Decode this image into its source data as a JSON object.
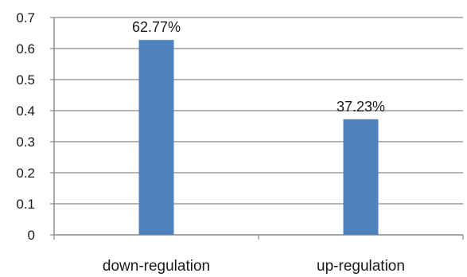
{
  "chart_data": {
    "type": "bar",
    "categories": [
      "down-regulation",
      "up-regulation"
    ],
    "values": [
      0.6277,
      0.3723
    ],
    "data_labels": [
      "62.77%",
      "37.23%"
    ],
    "title": "",
    "xlabel": "",
    "ylabel": "",
    "ylim": [
      0,
      0.7
    ],
    "yticks": [
      "0",
      "0.1",
      "0.2",
      "0.3",
      "0.4",
      "0.5",
      "0.6",
      "0.7"
    ],
    "grid": true,
    "legend": "none",
    "colors": {
      "bar": "#4F81BD",
      "gridline": "#868686",
      "axis": "#868686"
    }
  }
}
